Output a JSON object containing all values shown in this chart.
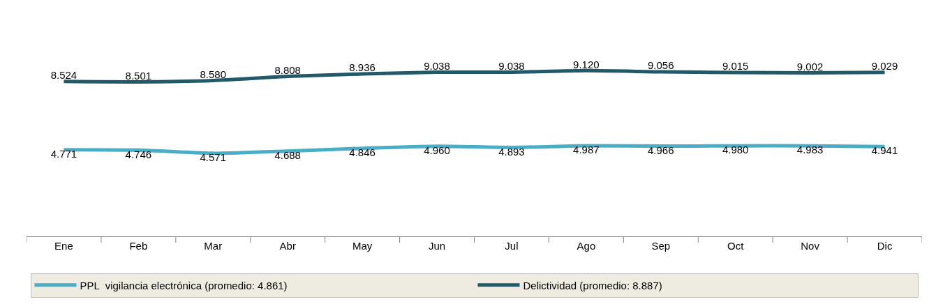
{
  "chart_data": {
    "type": "line",
    "categories": [
      "Ene",
      "Feb",
      "Mar",
      "Abr",
      "May",
      "Jun",
      "Jul",
      "Ago",
      "Sep",
      "Oct",
      "Nov",
      "Dic"
    ],
    "legend": "bottom",
    "marker": "none",
    "line_style": "solid",
    "series": [
      {
        "name": "PPL  vigilancia electrónica (promedio: 4.861)",
        "color": "#4bacc6",
        "values": [
          4771,
          4746,
          4571,
          4688,
          4846,
          4960,
          4893,
          4987,
          4966,
          4980,
          4983,
          4941
        ],
        "value_labels": [
          "4.771",
          "4.746",
          "4.571",
          "4.688",
          "4.846",
          "4.960",
          "4.893",
          "4.987",
          "4.966",
          "4.980",
          "4.983",
          "4.941"
        ]
      },
      {
        "name": "Delictividad (promedio: 8.887)",
        "color": "#215968",
        "values": [
          8524,
          8501,
          8580,
          8808,
          8936,
          9038,
          9038,
          9120,
          9056,
          9015,
          9002,
          9029
        ],
        "value_labels": [
          "8.524",
          "8.501",
          "8.580",
          "8.808",
          "8.936",
          "9.038",
          "9.038",
          "9.120",
          "9.056",
          "9.015",
          "9.002",
          "9.029"
        ]
      }
    ]
  }
}
